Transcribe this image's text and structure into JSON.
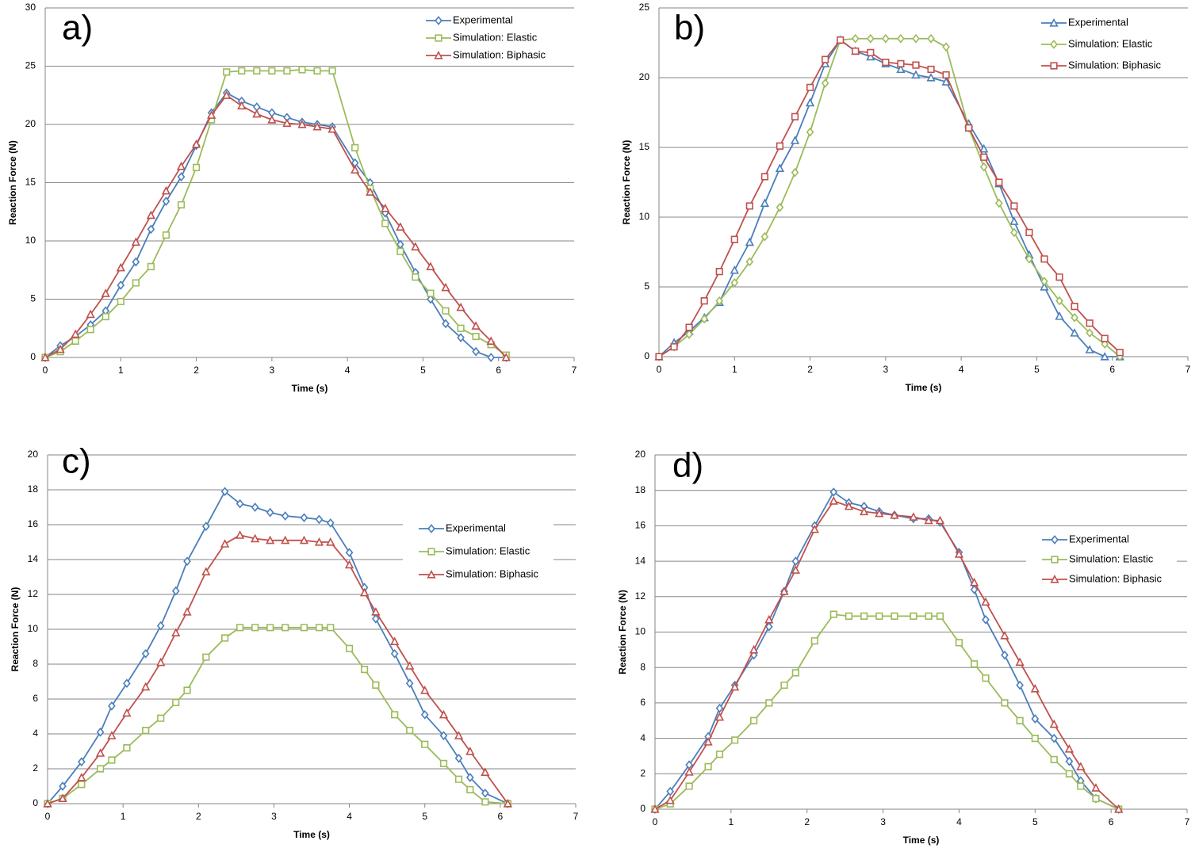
{
  "chart_data": [
    {
      "type": "line",
      "label": "a)",
      "x_label": "Time (s)",
      "y_label": "Reaction Force (N)",
      "xlim": [
        0,
        7
      ],
      "xticks": [
        0,
        1,
        2,
        3,
        4,
        5,
        6,
        7
      ],
      "ylim": [
        0,
        30
      ],
      "yticks": [
        0,
        5,
        10,
        15,
        20,
        25,
        30
      ],
      "grid": true,
      "legend": "top-right",
      "x": [
        0,
        0.2,
        0.4,
        0.6,
        0.8,
        1.0,
        1.2,
        1.4,
        1.6,
        1.8,
        2.0,
        2.2,
        2.4,
        2.6,
        2.8,
        3.0,
        3.2,
        3.4,
        3.6,
        3.8,
        4.1,
        4.3,
        4.5,
        4.7,
        4.9,
        5.1,
        5.3,
        5.5,
        5.7,
        5.9,
        6.1
      ],
      "series": [
        {
          "name": "Experimental",
          "color": "#4a7ebb",
          "marker": "diamond",
          "values": [
            0,
            1.0,
            1.8,
            2.8,
            4.0,
            6.2,
            8.2,
            11.0,
            13.4,
            15.5,
            18.2,
            21.0,
            22.7,
            22.0,
            21.5,
            21.0,
            20.6,
            20.2,
            20.0,
            19.8,
            16.7,
            15.0,
            12.4,
            9.7,
            7.3,
            5.0,
            2.9,
            1.7,
            0.5,
            0,
            0
          ]
        },
        {
          "name": "Simulation: Elastic",
          "color": "#9bbb59",
          "marker": "square",
          "values": [
            0,
            0.5,
            1.4,
            2.4,
            3.5,
            4.8,
            6.4,
            7.8,
            10.5,
            13.1,
            16.3,
            20.4,
            24.5,
            24.6,
            24.6,
            24.6,
            24.6,
            24.7,
            24.6,
            24.6,
            18.0,
            14.5,
            11.5,
            9.1,
            6.9,
            5.5,
            4.0,
            2.5,
            1.8,
            1.1,
            0.2
          ]
        },
        {
          "name": "Simulation: Biphasic",
          "color": "#c0504d",
          "marker": "triangle",
          "values": [
            0,
            0.7,
            2.0,
            3.7,
            5.5,
            7.7,
            9.9,
            12.2,
            14.3,
            16.4,
            18.3,
            20.8,
            22.5,
            21.6,
            20.9,
            20.4,
            20.1,
            20.0,
            19.8,
            19.6,
            16.1,
            14.2,
            12.8,
            11.2,
            9.5,
            7.8,
            6.0,
            4.3,
            2.7,
            1.4,
            0
          ]
        }
      ]
    },
    {
      "type": "line",
      "label": "b)",
      "x_label": "Time (s)",
      "y_label": "Reaction Force (N)",
      "xlim": [
        0,
        7
      ],
      "xticks": [
        0,
        1,
        2,
        3,
        4,
        5,
        6,
        7
      ],
      "ylim": [
        0,
        25
      ],
      "yticks": [
        0,
        5,
        10,
        15,
        20,
        25
      ],
      "grid": true,
      "legend": "top-right",
      "x": [
        0,
        0.2,
        0.4,
        0.6,
        0.8,
        1.0,
        1.2,
        1.4,
        1.6,
        1.8,
        2.0,
        2.2,
        2.4,
        2.6,
        2.8,
        3.0,
        3.2,
        3.4,
        3.6,
        3.8,
        4.1,
        4.3,
        4.5,
        4.7,
        4.9,
        5.1,
        5.3,
        5.5,
        5.7,
        5.9,
        6.1
      ],
      "series": [
        {
          "name": "Experimental",
          "color": "#4a7ebb",
          "marker": "triangle",
          "values": [
            0,
            1.0,
            1.8,
            2.8,
            3.9,
            6.2,
            8.2,
            11.0,
            13.5,
            15.5,
            18.2,
            21.0,
            22.7,
            21.9,
            21.5,
            21.0,
            20.6,
            20.2,
            20.0,
            19.7,
            16.7,
            14.9,
            12.4,
            9.7,
            7.3,
            5.0,
            2.9,
            1.7,
            0.5,
            0,
            0
          ]
        },
        {
          "name": "Simulation: Elastic",
          "color": "#9bbb59",
          "marker": "diamond",
          "values": [
            0,
            0.7,
            1.6,
            2.7,
            4.0,
            5.3,
            6.8,
            8.6,
            10.7,
            13.2,
            16.1,
            19.6,
            22.7,
            22.8,
            22.8,
            22.8,
            22.8,
            22.8,
            22.8,
            22.2,
            16.4,
            13.6,
            11.0,
            8.9,
            7.0,
            5.4,
            4.0,
            2.8,
            1.7,
            0.9,
            0
          ]
        },
        {
          "name": "Simulation: Biphasic",
          "color": "#c0504d",
          "marker": "square",
          "values": [
            0,
            0.7,
            2.1,
            4.0,
            6.1,
            8.4,
            10.8,
            12.9,
            15.1,
            17.2,
            19.3,
            21.3,
            22.7,
            21.9,
            21.8,
            21.1,
            21.0,
            20.9,
            20.6,
            20.2,
            16.4,
            14.3,
            12.5,
            10.8,
            8.9,
            7.0,
            5.7,
            3.6,
            2.4,
            1.3,
            0.3
          ]
        }
      ]
    },
    {
      "type": "line",
      "label": "c)",
      "x_label": "Time (s)",
      "y_label": "Reaction Force (N)",
      "xlim": [
        0,
        7
      ],
      "xticks": [
        0,
        1,
        2,
        3,
        4,
        5,
        6,
        7
      ],
      "ylim": [
        0,
        20
      ],
      "yticks": [
        0,
        2,
        4,
        6,
        8,
        10,
        12,
        14,
        16,
        18,
        20
      ],
      "grid": true,
      "legend": "right",
      "x": [
        0,
        0.2,
        0.45,
        0.7,
        0.85,
        1.05,
        1.3,
        1.5,
        1.7,
        1.85,
        2.1,
        2.35,
        2.55,
        2.75,
        2.95,
        3.15,
        3.4,
        3.6,
        3.75,
        4.0,
        4.2,
        4.35,
        4.6,
        4.8,
        5.0,
        5.25,
        5.45,
        5.6,
        5.8,
        6.1
      ],
      "series": [
        {
          "name": "Experimental",
          "color": "#4a7ebb",
          "marker": "diamond",
          "values": [
            0,
            1.0,
            2.4,
            4.1,
            5.6,
            6.9,
            8.6,
            10.2,
            12.2,
            13.9,
            15.9,
            17.9,
            17.2,
            17.0,
            16.7,
            16.5,
            16.4,
            16.3,
            16.1,
            14.4,
            12.4,
            10.6,
            8.6,
            6.9,
            5.1,
            3.9,
            2.6,
            1.5,
            0.6,
            0
          ]
        },
        {
          "name": "Simulation: Elastic",
          "color": "#9bbb59",
          "marker": "square",
          "values": [
            0,
            0.3,
            1.1,
            2.0,
            2.5,
            3.2,
            4.2,
            4.9,
            5.8,
            6.5,
            8.4,
            9.5,
            10.1,
            10.1,
            10.1,
            10.1,
            10.1,
            10.1,
            10.1,
            8.9,
            7.7,
            6.8,
            5.1,
            4.2,
            3.4,
            2.3,
            1.4,
            0.8,
            0.1,
            0
          ]
        },
        {
          "name": "Simulation: Biphasic",
          "color": "#c0504d",
          "marker": "triangle",
          "values": [
            0,
            0.3,
            1.5,
            2.9,
            3.9,
            5.2,
            6.7,
            8.1,
            9.8,
            11.0,
            13.3,
            14.9,
            15.4,
            15.2,
            15.1,
            15.1,
            15.1,
            15.0,
            15.0,
            13.7,
            12.1,
            11.0,
            9.3,
            7.9,
            6.5,
            5.1,
            3.9,
            3.0,
            1.8,
            0
          ]
        }
      ]
    },
    {
      "type": "line",
      "label": "d)",
      "x_label": "Time (s)",
      "y_label": "Reaction Force (N)",
      "xlim": [
        0,
        7
      ],
      "xticks": [
        0,
        1,
        2,
        3,
        4,
        5,
        6,
        7
      ],
      "ylim": [
        0,
        20
      ],
      "yticks": [
        0,
        2,
        4,
        6,
        8,
        10,
        12,
        14,
        16,
        18,
        20
      ],
      "grid": true,
      "legend": "right",
      "x": [
        0,
        0.2,
        0.45,
        0.7,
        0.85,
        1.05,
        1.3,
        1.5,
        1.7,
        1.85,
        2.1,
        2.35,
        2.55,
        2.75,
        2.95,
        3.15,
        3.4,
        3.6,
        3.75,
        4.0,
        4.2,
        4.35,
        4.6,
        4.8,
        5.0,
        5.25,
        5.45,
        5.6,
        5.8,
        6.1
      ],
      "series": [
        {
          "name": "Experimental",
          "color": "#4a7ebb",
          "marker": "diamond",
          "values": [
            0,
            1.0,
            2.5,
            4.1,
            5.7,
            7.0,
            8.7,
            10.3,
            12.3,
            14.0,
            16.0,
            17.9,
            17.3,
            17.1,
            16.8,
            16.6,
            16.4,
            16.4,
            16.2,
            14.5,
            12.4,
            10.7,
            8.7,
            7.0,
            5.1,
            4.0,
            2.7,
            1.6,
            0.6,
            0
          ]
        },
        {
          "name": "Simulation: Elastic",
          "color": "#9bbb59",
          "marker": "square",
          "values": [
            0,
            0.3,
            1.3,
            2.4,
            3.1,
            3.9,
            5.0,
            6.0,
            7.0,
            7.7,
            9.5,
            11.0,
            10.9,
            10.9,
            10.9,
            10.9,
            10.9,
            10.9,
            10.9,
            9.4,
            8.2,
            7.4,
            6.0,
            5.0,
            4.0,
            2.8,
            2.0,
            1.3,
            0.6,
            0
          ]
        },
        {
          "name": "Simulation: Biphasic",
          "color": "#c0504d",
          "marker": "triangle",
          "values": [
            0,
            0.5,
            2.1,
            3.8,
            5.2,
            6.9,
            9.0,
            10.7,
            12.3,
            13.5,
            15.8,
            17.4,
            17.1,
            16.8,
            16.7,
            16.6,
            16.5,
            16.3,
            16.3,
            14.4,
            12.8,
            11.7,
            9.8,
            8.3,
            6.8,
            4.8,
            3.4,
            2.4,
            1.2,
            0
          ]
        }
      ]
    }
  ]
}
